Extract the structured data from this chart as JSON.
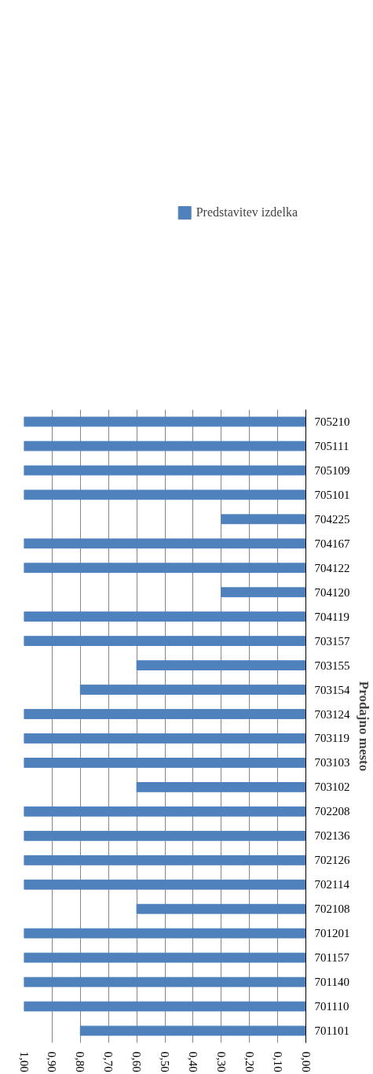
{
  "chart_data": {
    "type": "bar",
    "orientation": "horizontal",
    "ylabel": "Prodajno mesto",
    "categories": [
      "705210",
      "705111",
      "705109",
      "705101",
      "704225",
      "704167",
      "704122",
      "704120",
      "704119",
      "703157",
      "703155",
      "703154",
      "703124",
      "703119",
      "703103",
      "703102",
      "702208",
      "702136",
      "702126",
      "702114",
      "702108",
      "701201",
      "701157",
      "701140",
      "701110",
      "701101"
    ],
    "series": [
      {
        "name": "Predstavitev izdelka",
        "color": "#4f81bd",
        "values": [
          1,
          1,
          1,
          1,
          0.3,
          1,
          1,
          0.3,
          1,
          1,
          0.6,
          0.8,
          1,
          1,
          1,
          0.6,
          1,
          1,
          1,
          1,
          0.6,
          1,
          1,
          1,
          1,
          0.8
        ]
      }
    ],
    "xlim": [
      1.0,
      0.0
    ],
    "xticks": [
      {
        "value": 1.0,
        "label": "1,00"
      },
      {
        "value": 0.9,
        "label": "0,90"
      },
      {
        "value": 0.8,
        "label": "0,80"
      },
      {
        "value": 0.7,
        "label": "0,70"
      },
      {
        "value": 0.6,
        "label": "0,60"
      },
      {
        "value": 0.5,
        "label": "0,50"
      },
      {
        "value": 0.4,
        "label": "0,40"
      },
      {
        "value": 0.3,
        "label": "0,30"
      },
      {
        "value": 0.2,
        "label": "0,20"
      },
      {
        "value": 0.1,
        "label": "0,10"
      },
      {
        "value": 0.0,
        "label": "0,00"
      }
    ],
    "grid": "x",
    "legend": "top"
  }
}
